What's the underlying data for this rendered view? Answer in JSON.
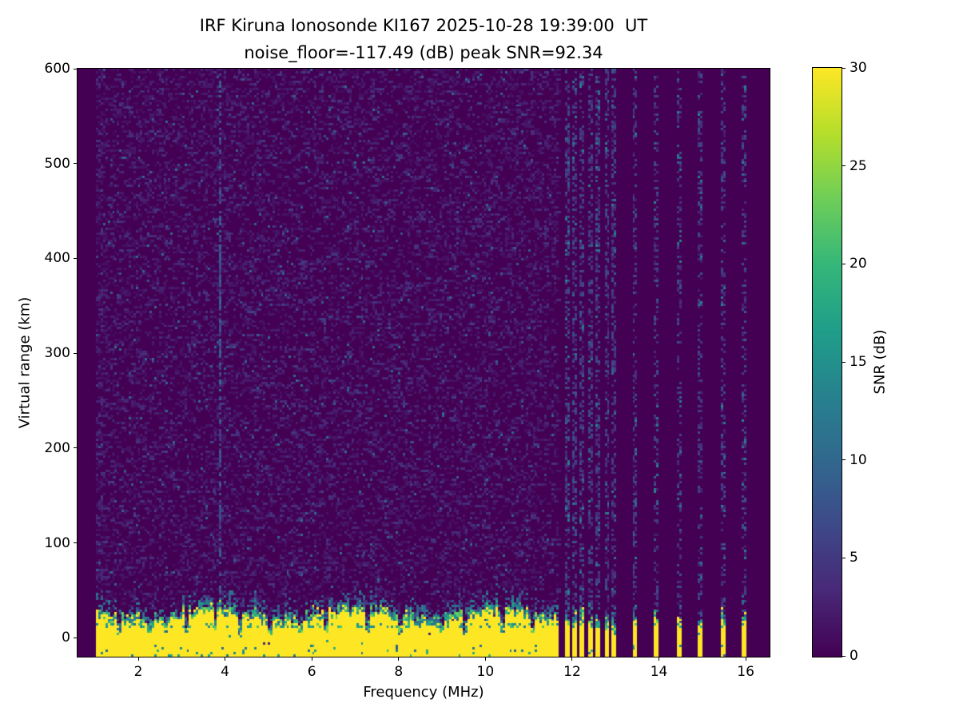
{
  "figure": {
    "title_line1": "IRF Kiruna Ionosonde KI167 2025-10-28 19:39:00  UT",
    "title_line2": "noise_floor=-117.49 (dB) peak SNR=92.34",
    "background_color": "#ffffff",
    "noise_floor_db": -117.49,
    "peak_snr_db": 92.34
  },
  "chart_data": {
    "type": "heatmap",
    "title": "IRF Kiruna Ionosonde KI167 2025-10-28 19:39:00  UT",
    "subtitle": "noise_floor=-117.49 (dB) peak SNR=92.34",
    "xlabel": "Frequency (MHz)",
    "ylabel": "Virtual range (km)",
    "colorbar_label": "SNR (dB)",
    "xlim": [
      0.6,
      16.55
    ],
    "ylim": [
      -20,
      600
    ],
    "clim": [
      0,
      30
    ],
    "x_ticks": [
      2,
      4,
      6,
      8,
      10,
      12,
      14,
      16
    ],
    "y_ticks": [
      0,
      100,
      200,
      300,
      400,
      500,
      600
    ],
    "colorbar_ticks": [
      0,
      5,
      10,
      15,
      20,
      25,
      30
    ],
    "colormap": "viridis",
    "viridis_stops": [
      "#440154",
      "#482878",
      "#3e4989",
      "#31688e",
      "#26828e",
      "#1f9e89",
      "#35b779",
      "#6ece58",
      "#b5de2b",
      "#fde725"
    ],
    "grid": false,
    "features": {
      "silent_below_mhz": 1.02,
      "continuous_sweep_mhz": [
        1.02,
        11.7
      ],
      "discrete_sweep_freqs_mhz": [
        11.87,
        12.05,
        12.23,
        12.41,
        12.6,
        12.78,
        12.96,
        13.42,
        13.95,
        14.45,
        14.93,
        15.47,
        15.96
      ],
      "ground_echo_band": {
        "range_km": [
          -20,
          30
        ],
        "snr_db": 30,
        "cap_teal_to_km": 45
      },
      "band_notch_freqs_mhz": [
        1.55,
        2.25,
        2.62,
        3.12,
        3.78,
        4.35,
        5.05,
        5.75,
        6.32,
        7.3,
        8.05,
        9.0,
        9.55,
        10.4,
        11.1
      ],
      "interference_line_mhz": 3.88,
      "background_noise_snr_db": [
        0,
        6
      ]
    },
    "render": {
      "seed": 42,
      "ncols": 298,
      "nrows": 248,
      "speckle_probability": 0.27,
      "low_freq_boost_below_mhz": 1.2
    }
  },
  "layout_text": {
    "x_axis_name": "x-axis",
    "y_axis_name": "y-axis",
    "colorbar_axis_name": "colorbar-axis"
  }
}
